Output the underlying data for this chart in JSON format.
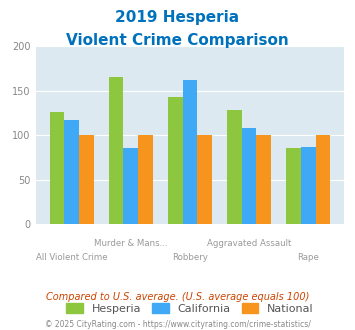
{
  "title_line1": "2019 Hesperia",
  "title_line2": "Violent Crime Comparison",
  "categories": [
    "All Violent Crime",
    "Murder & Mans...",
    "Robbery",
    "Aggravated Assault",
    "Rape"
  ],
  "hesperia": [
    126,
    165,
    143,
    128,
    86
  ],
  "california": [
    117,
    86,
    162,
    108,
    87
  ],
  "national": [
    100,
    100,
    100,
    100,
    100
  ],
  "hesperia_color": "#8dc63f",
  "california_color": "#3fa9f5",
  "national_color": "#f7941d",
  "background_color": "#dce9f0",
  "title_color": "#0071bc",
  "xlabel_color": "#999999",
  "ylim": [
    0,
    200
  ],
  "yticks": [
    0,
    50,
    100,
    150,
    200
  ],
  "subtitle": "Compared to U.S. average. (U.S. average equals 100)",
  "footer": "© 2025 CityRating.com - https://www.cityrating.com/crime-statistics/",
  "legend_labels": [
    "Hesperia",
    "California",
    "National"
  ],
  "cat_top": [
    "",
    "Murder & Mans...",
    "",
    "Aggravated Assault",
    ""
  ],
  "cat_bottom": [
    "All Violent Crime",
    "",
    "Robbery",
    "",
    "Rape"
  ]
}
